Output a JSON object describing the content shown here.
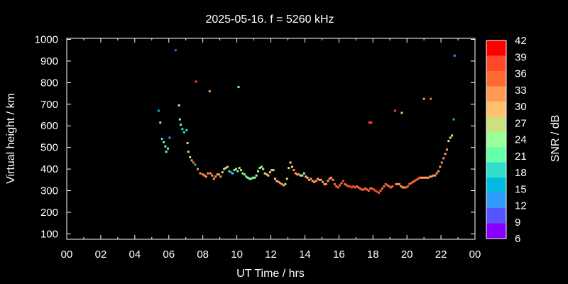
{
  "chart_data": {
    "type": "scatter",
    "title": "2025-05-16. f = 5260 kHz",
    "xlabel": "UT Time / hrs",
    "ylabel": "Virtual height / km",
    "xlim": [
      0,
      24
    ],
    "ylim": [
      75,
      1005
    ],
    "x_ticks": [
      "00",
      "02",
      "04",
      "06",
      "08",
      "10",
      "12",
      "14",
      "16",
      "18",
      "20",
      "22",
      "00"
    ],
    "y_ticks": [
      "100",
      "200",
      "300",
      "400",
      "500",
      "600",
      "700",
      "800",
      "900",
      "1000"
    ],
    "grid": false,
    "legend": "none",
    "colorbar": {
      "label": "SNR / dB",
      "min": 6,
      "max": 42,
      "ticks": [
        "42",
        "39",
        "36",
        "33",
        "30",
        "27",
        "24",
        "21",
        "18",
        "15",
        "12",
        "9",
        "6"
      ],
      "colors": [
        "#ff0000",
        "#ff4a2a",
        "#ff6a33",
        "#ff9955",
        "#ffc070",
        "#cce080",
        "#99ff99",
        "#66ffaa",
        "#33ddcc",
        "#00bbdd",
        "#3399ff",
        "#5555ff",
        "#8800ff"
      ]
    },
    "points": [
      [
        5.4,
        670,
        14
      ],
      [
        5.5,
        615,
        20
      ],
      [
        5.6,
        540,
        18
      ],
      [
        5.7,
        525,
        20
      ],
      [
        5.8,
        505,
        22
      ],
      [
        5.85,
        480,
        20
      ],
      [
        5.95,
        495,
        22
      ],
      [
        6.05,
        545,
        12
      ],
      [
        6.4,
        950,
        10
      ],
      [
        6.6,
        695,
        26
      ],
      [
        6.65,
        630,
        22
      ],
      [
        6.7,
        605,
        20
      ],
      [
        6.8,
        585,
        18
      ],
      [
        6.9,
        570,
        18
      ],
      [
        7.05,
        580,
        18
      ],
      [
        7.1,
        520,
        30
      ],
      [
        7.15,
        480,
        26
      ],
      [
        7.25,
        455,
        26
      ],
      [
        7.35,
        440,
        34
      ],
      [
        7.45,
        430,
        36
      ],
      [
        7.55,
        420,
        14
      ],
      [
        7.6,
        805,
        40
      ],
      [
        7.7,
        400,
        34
      ],
      [
        7.85,
        380,
        34
      ],
      [
        8.0,
        375,
        34
      ],
      [
        8.1,
        370,
        33
      ],
      [
        8.2,
        365,
        33
      ],
      [
        8.3,
        380,
        33
      ],
      [
        8.45,
        380,
        34
      ],
      [
        8.55,
        370,
        33
      ],
      [
        8.65,
        355,
        33
      ],
      [
        8.75,
        365,
        34
      ],
      [
        8.85,
        375,
        33
      ],
      [
        8.95,
        375,
        33
      ],
      [
        9.05,
        365,
        34
      ],
      [
        8.4,
        760,
        32
      ],
      [
        9.15,
        385,
        26
      ],
      [
        9.25,
        400,
        26
      ],
      [
        9.35,
        405,
        26
      ],
      [
        9.45,
        410,
        26
      ],
      [
        9.55,
        390,
        18
      ],
      [
        9.65,
        385,
        12
      ],
      [
        9.75,
        380,
        18
      ],
      [
        9.85,
        395,
        22
      ],
      [
        9.95,
        400,
        26
      ],
      [
        10.05,
        390,
        22
      ],
      [
        10.1,
        780,
        22
      ],
      [
        10.15,
        405,
        26
      ],
      [
        10.25,
        395,
        26
      ],
      [
        10.35,
        380,
        26
      ],
      [
        10.45,
        375,
        22
      ],
      [
        10.55,
        365,
        22
      ],
      [
        10.65,
        360,
        24
      ],
      [
        10.75,
        355,
        24
      ],
      [
        10.85,
        355,
        24
      ],
      [
        10.95,
        360,
        22
      ],
      [
        11.05,
        360,
        24
      ],
      [
        11.15,
        370,
        24
      ],
      [
        11.25,
        390,
        24
      ],
      [
        11.35,
        405,
        24
      ],
      [
        11.45,
        410,
        24
      ],
      [
        11.55,
        400,
        24
      ],
      [
        11.65,
        380,
        28
      ],
      [
        11.75,
        375,
        30
      ],
      [
        11.85,
        370,
        30
      ],
      [
        11.95,
        385,
        30
      ],
      [
        12.05,
        395,
        30
      ],
      [
        12.15,
        395,
        30
      ],
      [
        12.25,
        355,
        30
      ],
      [
        12.35,
        345,
        30
      ],
      [
        12.45,
        340,
        32
      ],
      [
        12.55,
        335,
        32
      ],
      [
        12.65,
        330,
        32
      ],
      [
        12.75,
        325,
        32
      ],
      [
        12.85,
        330,
        28
      ],
      [
        12.95,
        355,
        28
      ],
      [
        13.05,
        405,
        28
      ],
      [
        13.15,
        430,
        28
      ],
      [
        13.25,
        410,
        30
      ],
      [
        13.35,
        395,
        32
      ],
      [
        13.45,
        380,
        32
      ],
      [
        13.55,
        375,
        32
      ],
      [
        13.65,
        375,
        32
      ],
      [
        13.75,
        370,
        30
      ],
      [
        13.85,
        370,
        22
      ],
      [
        13.95,
        380,
        24
      ],
      [
        14.05,
        365,
        30
      ],
      [
        14.15,
        360,
        30
      ],
      [
        14.25,
        350,
        32
      ],
      [
        14.35,
        355,
        32
      ],
      [
        14.45,
        345,
        32
      ],
      [
        14.55,
        340,
        33
      ],
      [
        14.65,
        345,
        33
      ],
      [
        14.75,
        355,
        33
      ],
      [
        14.85,
        350,
        33
      ],
      [
        14.95,
        350,
        32
      ],
      [
        15.05,
        340,
        32
      ],
      [
        15.15,
        330,
        33
      ],
      [
        15.25,
        330,
        33
      ],
      [
        15.35,
        345,
        32
      ],
      [
        15.45,
        355,
        33
      ],
      [
        15.55,
        360,
        33
      ],
      [
        15.65,
        350,
        33
      ],
      [
        15.75,
        330,
        36
      ],
      [
        15.85,
        320,
        36
      ],
      [
        15.95,
        315,
        36
      ],
      [
        16.05,
        325,
        36
      ],
      [
        16.15,
        335,
        36
      ],
      [
        16.25,
        345,
        38
      ],
      [
        16.35,
        330,
        36
      ],
      [
        16.45,
        325,
        36
      ],
      [
        16.55,
        320,
        38
      ],
      [
        16.65,
        320,
        38
      ],
      [
        16.75,
        315,
        38
      ],
      [
        16.85,
        320,
        38
      ],
      [
        16.95,
        315,
        36
      ],
      [
        17.05,
        320,
        36
      ],
      [
        17.15,
        315,
        36
      ],
      [
        17.25,
        310,
        36
      ],
      [
        17.35,
        305,
        36
      ],
      [
        17.45,
        305,
        36
      ],
      [
        17.55,
        310,
        36
      ],
      [
        17.65,
        305,
        36
      ],
      [
        17.75,
        300,
        36
      ],
      [
        17.8,
        615,
        38
      ],
      [
        17.85,
        310,
        36
      ],
      [
        17.9,
        615,
        38
      ],
      [
        17.95,
        310,
        36
      ],
      [
        18.05,
        305,
        38
      ],
      [
        18.15,
        300,
        38
      ],
      [
        18.25,
        295,
        38
      ],
      [
        18.35,
        290,
        38
      ],
      [
        18.45,
        300,
        36
      ],
      [
        18.55,
        310,
        36
      ],
      [
        18.65,
        320,
        36
      ],
      [
        18.75,
        330,
        36
      ],
      [
        18.85,
        325,
        36
      ],
      [
        18.95,
        320,
        36
      ],
      [
        19.05,
        315,
        36
      ],
      [
        19.15,
        320,
        36
      ],
      [
        19.3,
        670,
        40
      ],
      [
        19.35,
        330,
        36
      ],
      [
        19.45,
        330,
        34
      ],
      [
        19.55,
        330,
        33
      ],
      [
        19.65,
        320,
        34
      ],
      [
        19.7,
        660,
        30
      ],
      [
        19.75,
        315,
        34
      ],
      [
        19.85,
        315,
        34
      ],
      [
        19.95,
        315,
        36
      ],
      [
        20.05,
        320,
        36
      ],
      [
        20.15,
        330,
        36
      ],
      [
        20.25,
        335,
        36
      ],
      [
        20.35,
        340,
        36
      ],
      [
        20.45,
        345,
        36
      ],
      [
        20.55,
        350,
        36
      ],
      [
        20.65,
        355,
        36
      ],
      [
        20.75,
        360,
        36
      ],
      [
        20.85,
        360,
        34
      ],
      [
        20.95,
        360,
        34
      ],
      [
        21.0,
        725,
        33
      ],
      [
        21.05,
        360,
        34
      ],
      [
        21.15,
        360,
        34
      ],
      [
        21.25,
        360,
        34
      ],
      [
        21.35,
        365,
        34
      ],
      [
        21.4,
        725,
        36
      ],
      [
        21.45,
        365,
        34
      ],
      [
        21.55,
        370,
        34
      ],
      [
        21.65,
        370,
        33
      ],
      [
        21.75,
        380,
        32
      ],
      [
        21.85,
        390,
        32
      ],
      [
        21.95,
        410,
        32
      ],
      [
        22.05,
        430,
        32
      ],
      [
        22.15,
        450,
        32
      ],
      [
        22.25,
        470,
        32
      ],
      [
        22.35,
        490,
        32
      ],
      [
        22.45,
        530,
        28
      ],
      [
        22.55,
        545,
        28
      ],
      [
        22.65,
        555,
        28
      ],
      [
        22.75,
        630,
        15
      ],
      [
        22.8,
        925,
        12
      ]
    ]
  }
}
